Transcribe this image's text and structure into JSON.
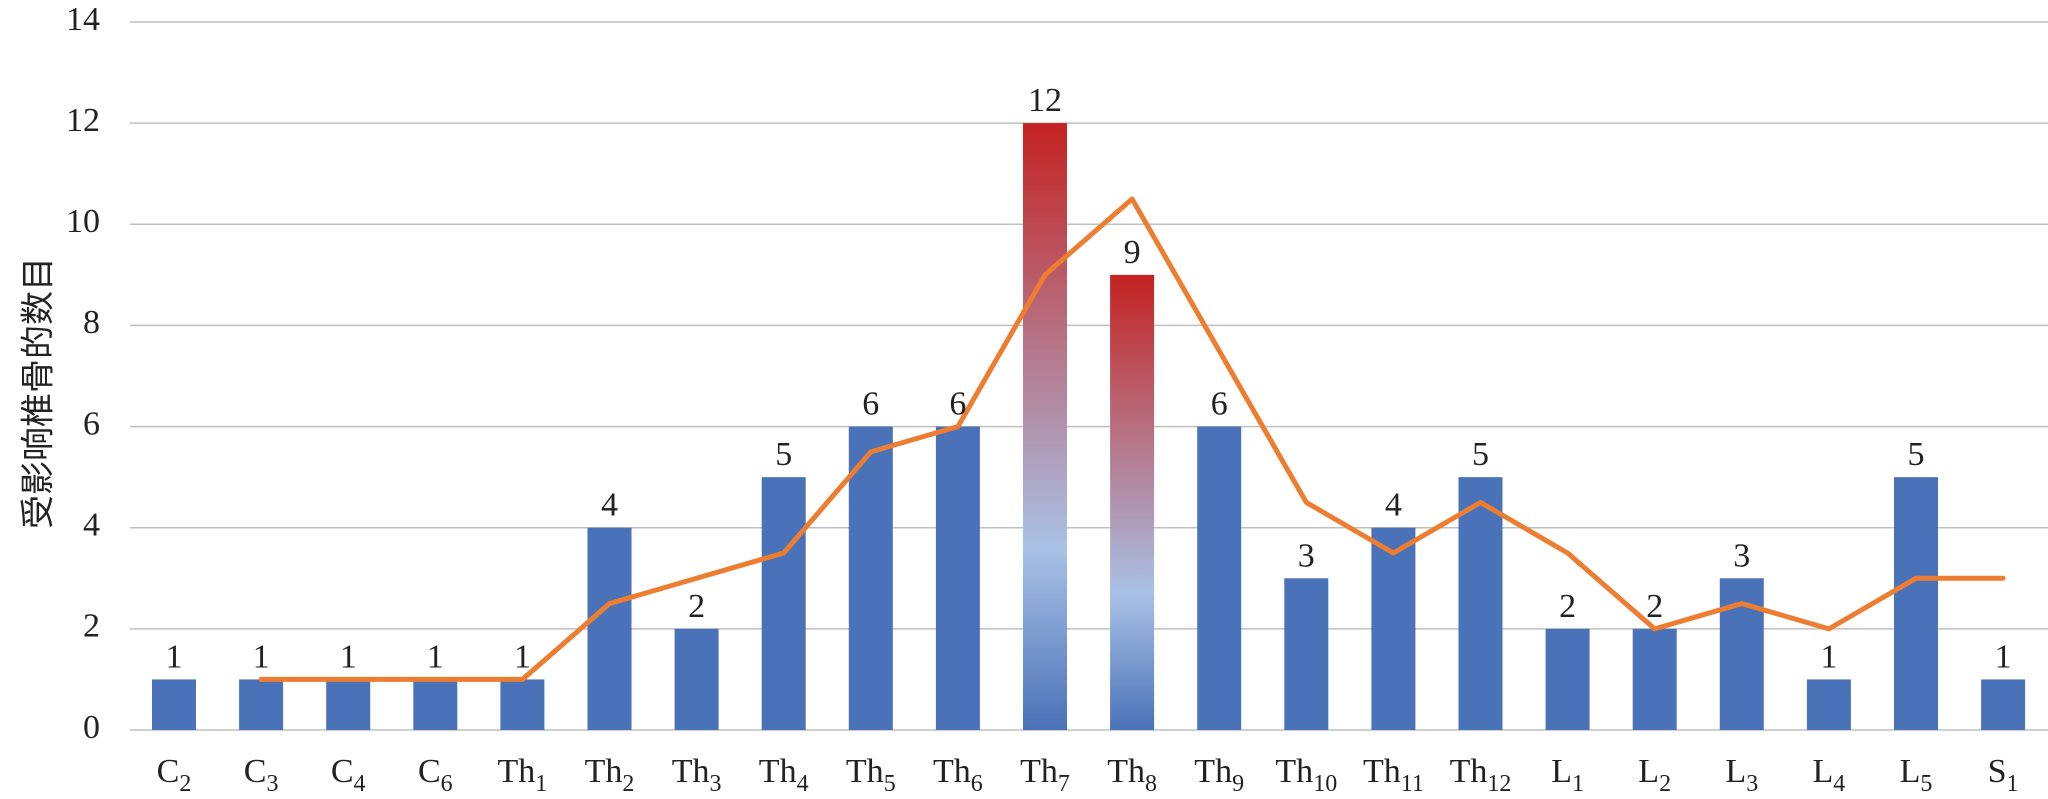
{
  "chart_data": {
    "type": "bar",
    "title": "",
    "xlabel": "",
    "ylabel": "受影响椎骨的数目",
    "ylim": [
      0,
      14
    ],
    "yticks": [
      0,
      2,
      4,
      6,
      8,
      10,
      12,
      14
    ],
    "grid": true,
    "legend": "none",
    "categories": [
      {
        "base": "C",
        "sub": "2"
      },
      {
        "base": "C",
        "sub": "3"
      },
      {
        "base": "C",
        "sub": "4"
      },
      {
        "base": "C",
        "sub": "6"
      },
      {
        "base": "Th",
        "sub": "1"
      },
      {
        "base": "Th",
        "sub": "2"
      },
      {
        "base": "Th",
        "sub": "3"
      },
      {
        "base": "Th",
        "sub": "4"
      },
      {
        "base": "Th",
        "sub": "5"
      },
      {
        "base": "Th",
        "sub": "6"
      },
      {
        "base": "Th",
        "sub": "7"
      },
      {
        "base": "Th",
        "sub": "8"
      },
      {
        "base": "Th",
        "sub": "9"
      },
      {
        "base": "Th",
        "sub": "10"
      },
      {
        "base": "Th",
        "sub": "11"
      },
      {
        "base": "Th",
        "sub": "12"
      },
      {
        "base": "L",
        "sub": "1"
      },
      {
        "base": "L",
        "sub": "2"
      },
      {
        "base": "L",
        "sub": "3"
      },
      {
        "base": "L",
        "sub": "4"
      },
      {
        "base": "L",
        "sub": "5"
      },
      {
        "base": "S",
        "sub": "1"
      }
    ],
    "series": [
      {
        "type": "bar",
        "values": [
          1,
          1,
          1,
          1,
          1,
          4,
          2,
          5,
          6,
          6,
          12,
          9,
          6,
          3,
          4,
          5,
          2,
          2,
          3,
          1,
          5,
          1
        ],
        "data_labels": [
          "1",
          "1",
          "1",
          "1",
          "1",
          "4",
          "2",
          "5",
          "6",
          "6",
          "12",
          "9",
          "6",
          "3",
          "4",
          "5",
          "2",
          "2",
          "3",
          "1",
          "5",
          "1"
        ],
        "color": "#4a72b8",
        "highlight_indices": [
          10,
          11
        ],
        "highlight_gradient": [
          "#c42221",
          "#a9c1e6",
          "#4a72b8"
        ]
      },
      {
        "type": "line",
        "values": [
          null,
          1,
          1,
          1,
          1,
          2.5,
          3,
          3.5,
          5.5,
          6,
          9,
          10.5,
          7.5,
          4.5,
          3.5,
          4.5,
          3.5,
          2,
          2.5,
          2,
          3,
          3
        ],
        "color": "#ed7d31"
      }
    ],
    "colors": {
      "bar": "#4a72b8",
      "line": "#ed7d31",
      "grid": "#bfbfbf",
      "highlight_top": "#c42221",
      "highlight_mid": "#a9c1e6"
    }
  }
}
